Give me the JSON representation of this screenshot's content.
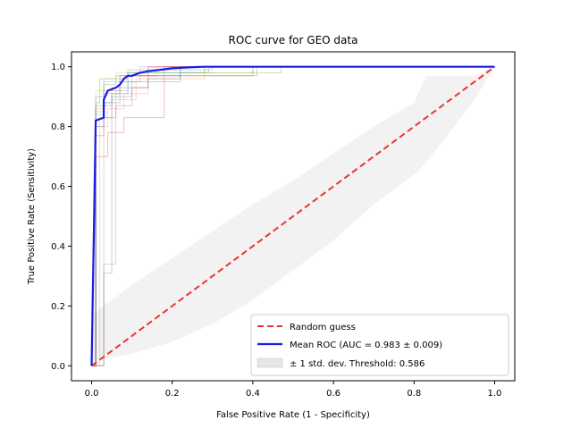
{
  "chart_data": {
    "type": "line",
    "title": "ROC curve for GEO data",
    "xlabel": "False Positive Rate (1 - Specificity)",
    "ylabel": "True Positive Rate (Sensitivity)",
    "xlim": [
      -0.05,
      1.05
    ],
    "ylim": [
      -0.05,
      1.05
    ],
    "xticks": [
      0.0,
      0.2,
      0.4,
      0.6,
      0.8,
      1.0
    ],
    "yticks": [
      0.0,
      0.2,
      0.4,
      0.6,
      0.8,
      1.0
    ],
    "xtick_labels": [
      "0.0",
      "0.2",
      "0.4",
      "0.6",
      "0.8",
      "1.0"
    ],
    "ytick_labels": [
      "0.0",
      "0.2",
      "0.4",
      "0.6",
      "0.8",
      "1.0"
    ],
    "grid": false,
    "legend_position": "lower-right",
    "series": [
      {
        "name": "Random guess",
        "style": "dashed",
        "color": "#ee3333",
        "x": [
          0,
          1
        ],
        "y": [
          0,
          1
        ]
      },
      {
        "name": "Mean ROC (AUC = 0.983 ± 0.009)",
        "style": "solid",
        "color": "#1a1ae6",
        "x": [
          0.0,
          0.01,
          0.01,
          0.03,
          0.03,
          0.04,
          0.04,
          0.06,
          0.07,
          0.08,
          0.09,
          0.1,
          0.12,
          0.14,
          0.17,
          0.2,
          0.24,
          0.28,
          1.0
        ],
        "y": [
          0.0,
          0.82,
          0.82,
          0.83,
          0.89,
          0.92,
          0.92,
          0.93,
          0.94,
          0.96,
          0.97,
          0.97,
          0.98,
          0.985,
          0.99,
          0.995,
          0.998,
          1.0,
          1.0
        ]
      }
    ],
    "std_band": {
      "name": "± 1 std. dev. Threshold: 0.586",
      "color": "#cccccc",
      "x": [
        0.0,
        0.02,
        0.1,
        0.2,
        0.3,
        0.4,
        0.5,
        0.6,
        0.7,
        0.8,
        0.83,
        0.9,
        0.95,
        1.0
      ],
      "upper": [
        0.17,
        0.19,
        0.27,
        0.36,
        0.45,
        0.54,
        0.62,
        0.71,
        0.8,
        0.88,
        0.97,
        0.97,
        0.97,
        1.0
      ],
      "lower": [
        0.0,
        0.02,
        0.04,
        0.08,
        0.14,
        0.22,
        0.32,
        0.42,
        0.54,
        0.64,
        0.68,
        0.8,
        0.89,
        1.0
      ]
    },
    "fold_curves": [
      {
        "color": "#1f77b4",
        "x": [
          0,
          0.01,
          0.01,
          0.03,
          0.03,
          0.07,
          0.07,
          0.14,
          0.14,
          0.22,
          0.22,
          0.29,
          0.29,
          1.0
        ],
        "y": [
          0,
          0,
          0.8,
          0.8,
          0.88,
          0.88,
          0.93,
          0.93,
          0.96,
          0.96,
          0.98,
          0.98,
          1.0,
          1.0
        ]
      },
      {
        "color": "#ff7f0e",
        "x": [
          0,
          0.01,
          0.01,
          0.03,
          0.03,
          0.07,
          0.07,
          0.16,
          0.16,
          1.0
        ],
        "y": [
          0,
          0,
          0.86,
          0.86,
          0.92,
          0.92,
          0.97,
          0.97,
          1.0,
          1.0
        ]
      },
      {
        "color": "#2ca02c",
        "x": [
          0,
          0.01,
          0.01,
          0.02,
          0.02,
          0.09,
          0.09,
          0.47,
          0.47,
          1.0
        ],
        "y": [
          0,
          0,
          0.88,
          0.88,
          0.96,
          0.96,
          0.98,
          0.98,
          1.0,
          1.0
        ]
      },
      {
        "color": "#d62728",
        "x": [
          0,
          0.01,
          0.01,
          0.03,
          0.03,
          0.06,
          0.06,
          0.1,
          0.1,
          0.14,
          0.14,
          1.0
        ],
        "y": [
          0,
          0,
          0.77,
          0.77,
          0.83,
          0.83,
          0.87,
          0.87,
          0.93,
          0.93,
          1.0,
          1.0
        ]
      },
      {
        "color": "#9467bd",
        "x": [
          0,
          0.01,
          0.01,
          0.03,
          0.03,
          0.07,
          0.07,
          0.12,
          0.12,
          1.0
        ],
        "y": [
          0,
          0,
          0.85,
          0.85,
          0.91,
          0.91,
          0.95,
          0.95,
          1.0,
          1.0
        ]
      },
      {
        "color": "#8c564b",
        "x": [
          0,
          0.01,
          0.01,
          0.03,
          0.03,
          0.06,
          0.06,
          0.41,
          0.41,
          1.0
        ],
        "y": [
          0,
          0,
          0.9,
          0.9,
          0.94,
          0.94,
          0.97,
          0.97,
          1.0,
          1.0
        ]
      },
      {
        "color": "#e377c2",
        "x": [
          0,
          0.01,
          0.01,
          0.04,
          0.04,
          0.08,
          0.08,
          0.14,
          0.14,
          1.0
        ],
        "y": [
          0,
          0,
          0.8,
          0.8,
          0.86,
          0.86,
          0.91,
          0.91,
          1.0,
          1.0
        ]
      },
      {
        "color": "#7f7f7f",
        "x": [
          0,
          0.03,
          0.03,
          0.05,
          0.05,
          0.07,
          0.07,
          0.22,
          0.22,
          1.0
        ],
        "y": [
          0,
          0,
          0.88,
          0.88,
          0.93,
          0.93,
          0.97,
          0.97,
          1.0,
          1.0
        ]
      },
      {
        "color": "#bcbd22",
        "x": [
          0,
          0.01,
          0.01,
          0.03,
          0.03,
          0.06,
          0.06,
          0.4,
          0.4,
          1.0
        ],
        "y": [
          0,
          0,
          0.92,
          0.92,
          0.96,
          0.96,
          0.98,
          0.98,
          1.0,
          1.0
        ]
      },
      {
        "color": "#17becf",
        "x": [
          0,
          0.01,
          0.01,
          0.03,
          0.03,
          0.09,
          0.09,
          0.28,
          0.28,
          1.0
        ],
        "y": [
          0,
          0,
          0.84,
          0.84,
          0.95,
          0.95,
          0.98,
          0.98,
          1.0,
          1.0
        ]
      },
      {
        "color": "#8c564b",
        "x": [
          0,
          0.03,
          0.03,
          0.05,
          0.05,
          0.1,
          0.1,
          0.4,
          0.4,
          1.0
        ],
        "y": [
          0,
          0,
          0.31,
          0.31,
          0.9,
          0.9,
          0.97,
          0.97,
          1.0,
          1.0
        ]
      },
      {
        "color": "#7f7f7f",
        "x": [
          0,
          0.03,
          0.03,
          0.06,
          0.06,
          0.09,
          0.09,
          0.3,
          0.3,
          1.0
        ],
        "y": [
          0,
          0,
          0.34,
          0.34,
          0.92,
          0.92,
          0.99,
          0.99,
          1.0,
          1.0
        ]
      },
      {
        "color": "#d62728",
        "x": [
          0,
          0.01,
          0.01,
          0.04,
          0.04,
          0.08,
          0.08,
          0.18,
          0.18,
          1.0
        ],
        "y": [
          0,
          0,
          0.7,
          0.7,
          0.78,
          0.78,
          0.83,
          0.83,
          1.0,
          1.0
        ]
      },
      {
        "color": "#1f77b4",
        "x": [
          0,
          0.01,
          0.01,
          0.05,
          0.05,
          0.09,
          0.09,
          0.22,
          0.22,
          1.0
        ],
        "y": [
          0,
          0,
          0.87,
          0.87,
          0.91,
          0.91,
          0.95,
          0.95,
          1.0,
          1.0
        ]
      },
      {
        "color": "#ff7f0e",
        "x": [
          0,
          0.02,
          0.02,
          0.05,
          0.05,
          0.11,
          0.11,
          0.28,
          0.28,
          1.0
        ],
        "y": [
          0,
          0,
          0.83,
          0.83,
          0.89,
          0.89,
          0.96,
          0.96,
          1.0,
          1.0
        ]
      }
    ]
  }
}
